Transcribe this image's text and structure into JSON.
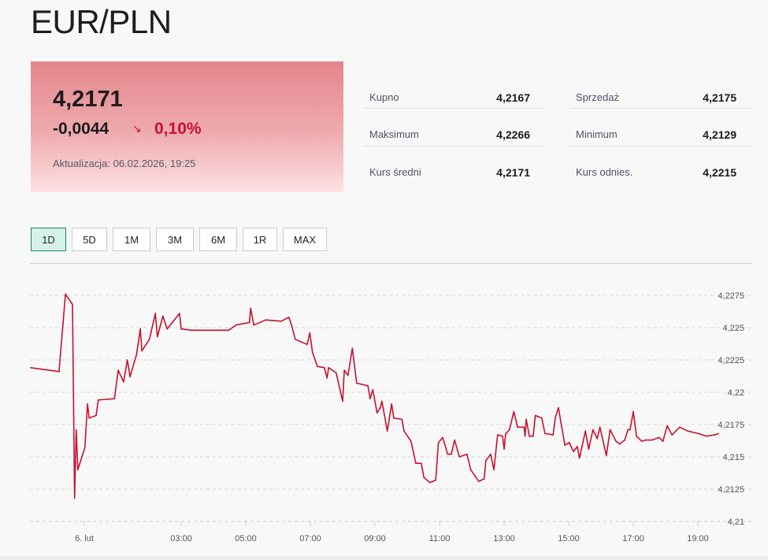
{
  "header": {
    "title": "EUR/PLN"
  },
  "quote": {
    "rate": "4,2171",
    "change": "-0,0044",
    "direction_icon": "arrow-down-right-icon",
    "change_pct": "0,10%",
    "updated": "Aktualizacja: 06.02.2026, 19:25",
    "colors": {
      "negative": "#c8102e",
      "card_top": "#e4868c",
      "card_bottom": "#fde1e3"
    }
  },
  "stats": [
    {
      "label": "Kupno",
      "value": "4,2167"
    },
    {
      "label": "Sprzedaż",
      "value": "4,2175"
    },
    {
      "label": "Maksimum",
      "value": "4,2266"
    },
    {
      "label": "Minimum",
      "value": "4,2129"
    },
    {
      "label": "Kurs średni",
      "value": "4,2171"
    },
    {
      "label": "Kurs odnies.",
      "value": "4,2215"
    }
  ],
  "ranges": {
    "items": [
      "1D",
      "5D",
      "1M",
      "3M",
      "6M",
      "1R",
      "MAX"
    ],
    "selected": "1D"
  },
  "chart_data": {
    "type": "line",
    "line_color": "#c8102e",
    "grid": "horizontal dashed",
    "y_axis_position": "right",
    "ylim": [
      4.21,
      4.2275
    ],
    "y_ticks": [
      "4,2275",
      "4,225",
      "4,2225",
      "4,22",
      "4,2175",
      "4,215",
      "4,2125",
      "4,21"
    ],
    "y_tick_values": [
      4.2275,
      4.225,
      4.2225,
      4.22,
      4.2175,
      4.215,
      4.2125,
      4.21
    ],
    "x_ticks": [
      {
        "label": "6. lut",
        "time": "00:00"
      },
      {
        "label": "03:00",
        "time": "03:00"
      },
      {
        "label": "05:00",
        "time": "05:00"
      },
      {
        "label": "07:00",
        "time": "07:00"
      },
      {
        "label": "09:00",
        "time": "09:00"
      },
      {
        "label": "11:00",
        "time": "11:00"
      },
      {
        "label": "13:00",
        "time": "13:00"
      },
      {
        "label": "15:00",
        "time": "15:00"
      },
      {
        "label": "17:00",
        "time": "17:00"
      },
      {
        "label": "19:00",
        "time": "19:00"
      }
    ],
    "series": [
      {
        "x": [
          "22:20",
          "23:13",
          "23:25",
          "23:38",
          "23:42",
          "23:45",
          "23:48",
          "00:01",
          "00:06",
          "00:09",
          "00:22",
          "00:26",
          "00:56",
          "01:03",
          "01:13",
          "01:20",
          "01:25",
          "01:37",
          "01:44",
          "01:47",
          "02:01",
          "02:12",
          "02:16",
          "02:26",
          "02:34",
          "02:57",
          "03:00",
          "03:19",
          "04:28",
          "04:42",
          "05:07",
          "05:09",
          "05:15",
          "05:37",
          "06:06",
          "06:20",
          "06:25",
          "06:32",
          "06:54",
          "06:59",
          "07:04",
          "07:13",
          "07:26",
          "07:31",
          "07:34",
          "07:48",
          "08:00",
          "08:03",
          "08:10",
          "08:18",
          "08:26",
          "08:47",
          "08:51",
          "08:56",
          "09:04",
          "09:10",
          "09:13",
          "09:23",
          "09:31",
          "09:35",
          "09:50",
          "09:54",
          "10:07",
          "10:16",
          "10:26",
          "10:31",
          "10:42",
          "10:53",
          "10:58",
          "11:06",
          "11:15",
          "11:22",
          "11:28",
          "11:37",
          "11:51",
          "11:58",
          "12:13",
          "12:23",
          "12:26",
          "12:35",
          "12:41",
          "12:48",
          "12:57",
          "13:00",
          "13:03",
          "13:10",
          "13:18",
          "13:25",
          "13:37",
          "13:39",
          "13:41",
          "13:47",
          "13:54",
          "13:58",
          "14:10",
          "14:16",
          "14:31",
          "14:35",
          "14:41",
          "14:47",
          "14:53",
          "15:01",
          "15:09",
          "15:16",
          "15:20",
          "15:31",
          "15:37",
          "15:45",
          "15:53",
          "15:58",
          "16:10",
          "16:17",
          "16:28",
          "16:35",
          "16:44",
          "16:50",
          "16:54",
          "17:00",
          "17:06",
          "17:16",
          "17:23",
          "17:35",
          "17:48",
          "17:55",
          "18:03",
          "18:12",
          "18:26",
          "18:41",
          "19:01",
          "19:16",
          "19:31",
          "19:38"
        ],
        "y": [
          4.2219,
          4.2216,
          4.2276,
          4.2268,
          4.2118,
          4.2171,
          4.214,
          4.2157,
          4.2191,
          4.218,
          4.2182,
          4.2194,
          4.2195,
          4.2217,
          4.2208,
          4.2225,
          4.2212,
          4.2229,
          4.2249,
          4.2232,
          4.2241,
          4.2261,
          4.2243,
          4.2259,
          4.2249,
          4.2261,
          4.2249,
          4.2248,
          4.2248,
          4.2252,
          4.2254,
          4.2265,
          4.2252,
          4.2256,
          4.2255,
          4.2258,
          4.2252,
          4.2241,
          4.2237,
          4.2246,
          4.2231,
          4.222,
          4.2219,
          4.2211,
          4.2219,
          4.2215,
          4.2193,
          4.2217,
          4.2213,
          4.2234,
          4.2207,
          4.2205,
          4.2195,
          4.2202,
          4.2184,
          4.2188,
          4.2193,
          4.217,
          4.2191,
          4.218,
          4.2179,
          4.217,
          4.2162,
          4.2145,
          4.2145,
          4.2134,
          4.213,
          4.2132,
          4.2161,
          4.2165,
          4.2152,
          4.2152,
          4.2163,
          4.215,
          4.2152,
          4.214,
          4.2131,
          4.2133,
          4.2147,
          4.2152,
          4.214,
          4.2167,
          4.2166,
          4.2156,
          4.2168,
          4.2171,
          4.2185,
          4.2173,
          4.2173,
          4.2166,
          4.2179,
          4.2166,
          4.2166,
          4.2182,
          4.218,
          4.2168,
          4.2167,
          4.218,
          4.2188,
          4.2173,
          4.2159,
          4.2161,
          4.2154,
          4.2158,
          4.2149,
          4.217,
          4.2156,
          4.2171,
          4.2164,
          4.2173,
          4.2151,
          4.2171,
          4.2162,
          4.216,
          4.2163,
          4.2171,
          4.2171,
          4.2185,
          4.2166,
          4.2162,
          4.2163,
          4.2163,
          4.2165,
          4.2162,
          4.2174,
          4.2167,
          4.2173,
          4.217,
          4.2168,
          4.2166,
          4.2167,
          4.2168
        ]
      }
    ]
  }
}
